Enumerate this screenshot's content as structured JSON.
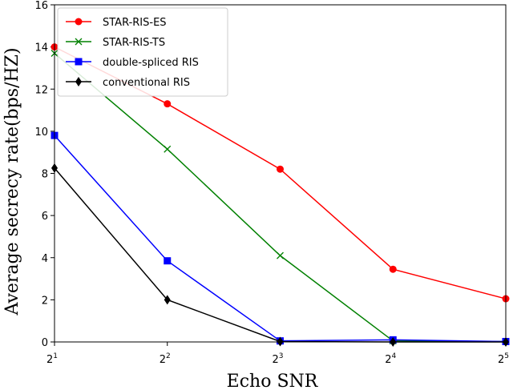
{
  "chart_data": {
    "type": "line",
    "title": "",
    "xlabel": "Echo SNR",
    "ylabel": "Average secrecy rate(bps/HZ)",
    "x_scale": "log2",
    "x": [
      2,
      4,
      8,
      16,
      32
    ],
    "x_tick_labels": [
      {
        "base": "2",
        "exp": "1"
      },
      {
        "base": "2",
        "exp": "2"
      },
      {
        "base": "2",
        "exp": "3"
      },
      {
        "base": "2",
        "exp": "4"
      },
      {
        "base": "2",
        "exp": "5"
      }
    ],
    "xlim": [
      2,
      32
    ],
    "ylim": [
      0,
      16
    ],
    "y_ticks": [
      0,
      2,
      4,
      6,
      8,
      10,
      12,
      14,
      16
    ],
    "grid": false,
    "legend_position": "top-left",
    "series": [
      {
        "name": "STAR-RIS-ES",
        "color": "#ff0000",
        "marker": "circle",
        "values": [
          14.0,
          11.3,
          8.2,
          3.45,
          2.05
        ]
      },
      {
        "name": "STAR-RIS-TS",
        "color": "#008000",
        "marker": "x",
        "values": [
          13.7,
          9.15,
          4.1,
          0.05,
          0.02
        ]
      },
      {
        "name": "double-spliced RIS",
        "color": "#0000ff",
        "marker": "square",
        "values": [
          9.8,
          3.85,
          0.05,
          0.1,
          0.02
        ]
      },
      {
        "name": "conventional RIS",
        "color": "#000000",
        "marker": "diamond",
        "values": [
          8.25,
          2.0,
          0.02,
          0.0,
          0.0
        ]
      }
    ]
  }
}
